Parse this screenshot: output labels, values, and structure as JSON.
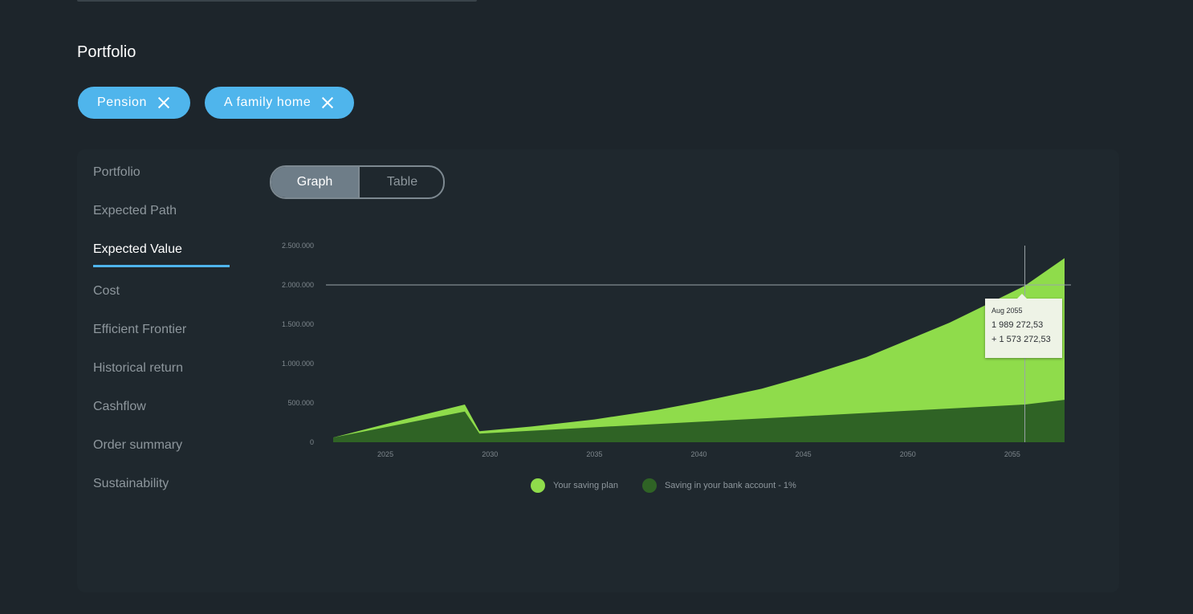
{
  "section_title": "Portfolio",
  "chips": [
    {
      "label": "Pension"
    },
    {
      "label": "A family home"
    }
  ],
  "side_nav": [
    {
      "label": "Portfolio",
      "active": false
    },
    {
      "label": "Expected Path",
      "active": false
    },
    {
      "label": "Expected Value",
      "active": true
    },
    {
      "label": "Cost",
      "active": false
    },
    {
      "label": "Efficient Frontier",
      "active": false
    },
    {
      "label": "Historical return",
      "active": false
    },
    {
      "label": "Cashflow",
      "active": false
    },
    {
      "label": "Order summary",
      "active": false
    },
    {
      "label": "Sustainability",
      "active": false
    }
  ],
  "view_toggle": {
    "graph": "Graph",
    "table": "Table",
    "selected": "Graph"
  },
  "tooltip": {
    "date": "Aug 2055",
    "value": "1 989 272,53",
    "gain": "+ 1 573 272,53"
  },
  "colors": {
    "saving_plan": "#8fdc4b",
    "bank_account": "#2f6325",
    "accent": "#4fb5ec"
  },
  "chart_data": {
    "type": "area",
    "x_ticks": [
      "2025",
      "2030",
      "2035",
      "2040",
      "2045",
      "2050",
      "2055"
    ],
    "y_ticks": [
      "0",
      "500.000",
      "1.000.000",
      "1.500.000",
      "2.000.000",
      "2.500.000"
    ],
    "xlim": [
      2022.5,
      2057.5
    ],
    "ylim": [
      0,
      2500000
    ],
    "series": [
      {
        "name": "Your saving plan",
        "x": [
          2022.5,
          2025,
          2028.8,
          2029.5,
          2032,
          2035,
          2038,
          2040,
          2043,
          2045,
          2048,
          2050,
          2052,
          2054,
          2055.6,
          2057.5
        ],
        "values": [
          60000,
          230000,
          480000,
          140000,
          200000,
          290000,
          410000,
          510000,
          680000,
          830000,
          1080000,
          1300000,
          1520000,
          1780000,
          1989272.53,
          2340000
        ]
      },
      {
        "name": "Saving in your bank account - 1%",
        "x": [
          2022.5,
          2028.8,
          2029.5,
          2035,
          2040,
          2045,
          2050,
          2055.6,
          2057.5
        ],
        "values": [
          60000,
          390000,
          110000,
          190000,
          260000,
          330000,
          400000,
          480000,
          540000
        ]
      }
    ],
    "crosshair": {
      "x": 2055.6,
      "y": 2000000
    }
  }
}
